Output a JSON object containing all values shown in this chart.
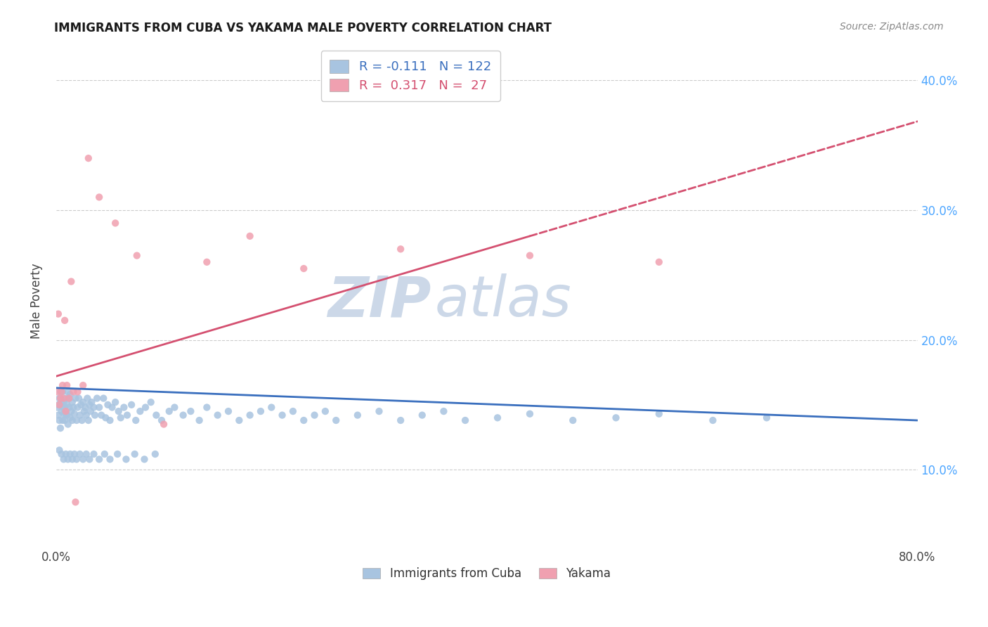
{
  "title": "IMMIGRANTS FROM CUBA VS YAKAMA MALE POVERTY CORRELATION CHART",
  "source": "Source: ZipAtlas.com",
  "ylabel": "Male Poverty",
  "legend_label1": "Immigrants from Cuba",
  "legend_label2": "Yakama",
  "r1": -0.111,
  "n1": 122,
  "r2": 0.317,
  "n2": 27,
  "xlim": [
    0.0,
    0.8
  ],
  "ylim": [
    0.04,
    0.42
  ],
  "ytick_labels": [
    "10.0%",
    "20.0%",
    "30.0%",
    "40.0%"
  ],
  "ytick_values": [
    0.1,
    0.2,
    0.3,
    0.4
  ],
  "xtick_values": [
    0.0,
    0.1,
    0.2,
    0.3,
    0.4,
    0.5,
    0.6,
    0.7,
    0.8
  ],
  "color_cuba": "#a8c4e0",
  "color_yakama": "#f0a0b0",
  "color_line_cuba": "#3a6fbe",
  "color_line_yakama": "#d45070",
  "background_color": "#ffffff",
  "watermark_color": "#ccd8e8",
  "cuba_x": [
    0.001,
    0.002,
    0.002,
    0.003,
    0.003,
    0.004,
    0.004,
    0.005,
    0.005,
    0.006,
    0.006,
    0.006,
    0.007,
    0.007,
    0.008,
    0.008,
    0.009,
    0.009,
    0.01,
    0.01,
    0.011,
    0.011,
    0.012,
    0.012,
    0.013,
    0.013,
    0.014,
    0.015,
    0.015,
    0.016,
    0.017,
    0.018,
    0.019,
    0.02,
    0.021,
    0.022,
    0.023,
    0.024,
    0.025,
    0.026,
    0.027,
    0.028,
    0.029,
    0.03,
    0.031,
    0.032,
    0.033,
    0.035,
    0.036,
    0.038,
    0.04,
    0.042,
    0.044,
    0.046,
    0.048,
    0.05,
    0.052,
    0.055,
    0.058,
    0.06,
    0.063,
    0.066,
    0.07,
    0.074,
    0.078,
    0.083,
    0.088,
    0.093,
    0.098,
    0.105,
    0.11,
    0.118,
    0.125,
    0.133,
    0.14,
    0.15,
    0.16,
    0.17,
    0.18,
    0.19,
    0.2,
    0.21,
    0.22,
    0.23,
    0.24,
    0.25,
    0.26,
    0.28,
    0.3,
    0.32,
    0.34,
    0.36,
    0.38,
    0.41,
    0.44,
    0.48,
    0.52,
    0.56,
    0.61,
    0.66,
    0.003,
    0.005,
    0.007,
    0.009,
    0.011,
    0.013,
    0.015,
    0.017,
    0.019,
    0.022,
    0.025,
    0.028,
    0.031,
    0.035,
    0.04,
    0.045,
    0.05,
    0.057,
    0.065,
    0.073,
    0.082,
    0.092
  ],
  "cuba_y": [
    0.148,
    0.15,
    0.142,
    0.155,
    0.138,
    0.16,
    0.132,
    0.145,
    0.152,
    0.148,
    0.138,
    0.16,
    0.143,
    0.152,
    0.148,
    0.138,
    0.155,
    0.143,
    0.15,
    0.142,
    0.16,
    0.135,
    0.148,
    0.155,
    0.14,
    0.158,
    0.145,
    0.138,
    0.152,
    0.148,
    0.143,
    0.155,
    0.138,
    0.148,
    0.155,
    0.142,
    0.15,
    0.138,
    0.152,
    0.145,
    0.148,
    0.142,
    0.155,
    0.138,
    0.15,
    0.145,
    0.152,
    0.148,
    0.142,
    0.155,
    0.148,
    0.142,
    0.155,
    0.14,
    0.15,
    0.138,
    0.148,
    0.152,
    0.145,
    0.14,
    0.148,
    0.142,
    0.15,
    0.138,
    0.145,
    0.148,
    0.152,
    0.142,
    0.138,
    0.145,
    0.148,
    0.142,
    0.145,
    0.138,
    0.148,
    0.142,
    0.145,
    0.138,
    0.142,
    0.145,
    0.148,
    0.142,
    0.145,
    0.138,
    0.142,
    0.145,
    0.138,
    0.142,
    0.145,
    0.138,
    0.142,
    0.145,
    0.138,
    0.14,
    0.143,
    0.138,
    0.14,
    0.143,
    0.138,
    0.14,
    0.115,
    0.112,
    0.108,
    0.112,
    0.108,
    0.112,
    0.108,
    0.112,
    0.108,
    0.112,
    0.108,
    0.112,
    0.108,
    0.112,
    0.108,
    0.112,
    0.108,
    0.112,
    0.108,
    0.112,
    0.108,
    0.112
  ],
  "yakama_x": [
    0.001,
    0.002,
    0.003,
    0.004,
    0.005,
    0.006,
    0.007,
    0.008,
    0.009,
    0.01,
    0.012,
    0.014,
    0.016,
    0.018,
    0.02,
    0.025,
    0.03,
    0.04,
    0.055,
    0.075,
    0.1,
    0.14,
    0.18,
    0.23,
    0.32,
    0.44,
    0.56
  ],
  "yakama_y": [
    0.16,
    0.22,
    0.15,
    0.155,
    0.16,
    0.165,
    0.155,
    0.215,
    0.145,
    0.165,
    0.155,
    0.245,
    0.16,
    0.075,
    0.16,
    0.165,
    0.34,
    0.31,
    0.29,
    0.265,
    0.135,
    0.26,
    0.28,
    0.255,
    0.27,
    0.265,
    0.26
  ],
  "line_cuba_x0": 0.0,
  "line_cuba_x1": 0.8,
  "line_cuba_y0": 0.163,
  "line_cuba_y1": 0.138,
  "line_yakama_solid_x0": 0.0,
  "line_yakama_solid_x1": 0.44,
  "line_yakama_y0": 0.172,
  "line_yakama_y1": 0.28,
  "line_yakama_dash_x0": 0.44,
  "line_yakama_dash_x1": 0.8
}
